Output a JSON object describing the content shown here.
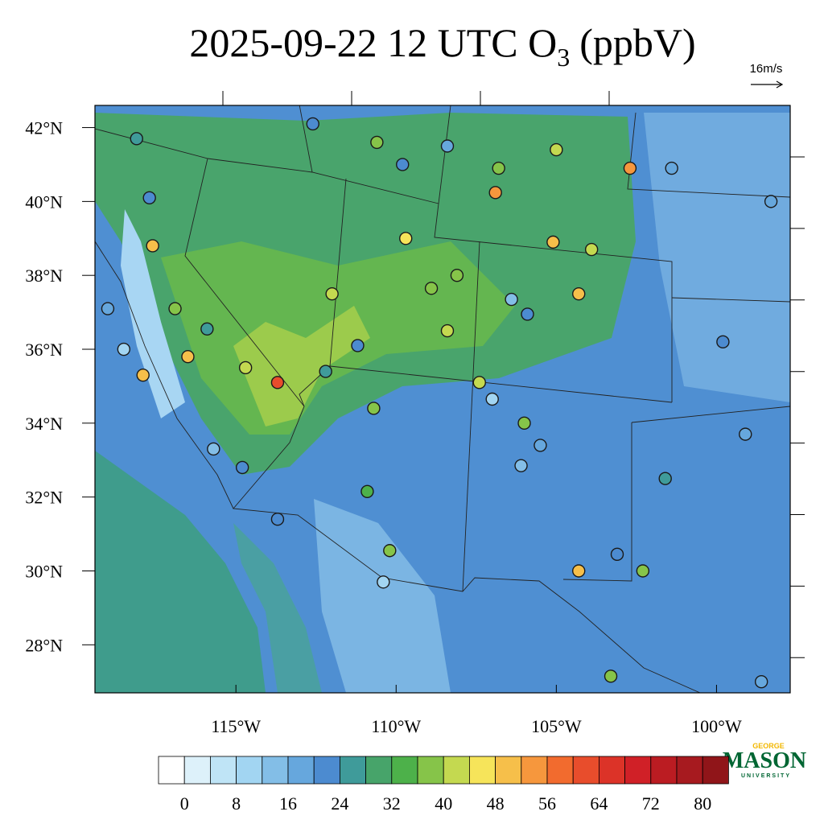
{
  "title": {
    "main": "2025-09-22 12 UTC O",
    "subscript": "3",
    "units": "(ppbV)"
  },
  "vector_reference": "16m/s",
  "map": {
    "xlim": [
      -119.4,
      -97.7
    ],
    "ylim": [
      26.7,
      42.6
    ],
    "xticks": [
      {
        "value": -115,
        "label": "115°W"
      },
      {
        "value": -110,
        "label": "110°W"
      },
      {
        "value": -105,
        "label": "105°W"
      },
      {
        "value": -100,
        "label": "100°W"
      }
    ],
    "yticks": [
      {
        "value": 28,
        "label": "28°N"
      },
      {
        "value": 30,
        "label": "30°N"
      },
      {
        "value": 32,
        "label": "32°N"
      },
      {
        "value": 34,
        "label": "34°N"
      },
      {
        "value": 36,
        "label": "36°N"
      },
      {
        "value": 38,
        "label": "38°N"
      },
      {
        "value": 40,
        "label": "40°N"
      },
      {
        "value": 42,
        "label": "42°N"
      }
    ],
    "stations": [
      {
        "lon": -113.7,
        "lat": 35.1,
        "value": 60
      },
      {
        "lon": -106.9,
        "lat": 40.24,
        "value": 54
      },
      {
        "lon": -102.7,
        "lat": 40.9,
        "value": 54
      },
      {
        "lon": -117.6,
        "lat": 38.8,
        "value": 48
      },
      {
        "lon": -117.9,
        "lat": 35.3,
        "value": 48
      },
      {
        "lon": -116.5,
        "lat": 35.8,
        "value": 48
      },
      {
        "lon": -105.1,
        "lat": 38.9,
        "value": 48
      },
      {
        "lon": -104.3,
        "lat": 37.5,
        "value": 48
      },
      {
        "lon": -104.3,
        "lat": 30.0,
        "value": 48
      },
      {
        "lon": -109.7,
        "lat": 39.0,
        "value": 44
      },
      {
        "lon": -105.0,
        "lat": 41.4,
        "value": 42
      },
      {
        "lon": -108.4,
        "lat": 36.5,
        "value": 42
      },
      {
        "lon": -103.9,
        "lat": 38.7,
        "value": 42
      },
      {
        "lon": -107.4,
        "lat": 35.1,
        "value": 42
      },
      {
        "lon": -110.6,
        "lat": 41.6,
        "value": 36
      },
      {
        "lon": -106.8,
        "lat": 40.9,
        "value": 36
      },
      {
        "lon": -108.1,
        "lat": 38.0,
        "value": 38
      },
      {
        "lon": -112.0,
        "lat": 37.5,
        "value": 40
      },
      {
        "lon": -114.7,
        "lat": 35.5,
        "value": 40
      },
      {
        "lon": -116.9,
        "lat": 37.1,
        "value": 38
      },
      {
        "lon": -108.9,
        "lat": 37.65,
        "value": 36
      },
      {
        "lon": -106.0,
        "lat": 34.0,
        "value": 36
      },
      {
        "lon": -102.3,
        "lat": 30.0,
        "value": 36
      },
      {
        "lon": -103.3,
        "lat": 27.15,
        "value": 38
      },
      {
        "lon": -110.7,
        "lat": 34.4,
        "value": 36
      },
      {
        "lon": -110.9,
        "lat": 32.15,
        "value": 34
      },
      {
        "lon": -110.2,
        "lat": 30.55,
        "value": 36
      },
      {
        "lon": -112.2,
        "lat": 35.4,
        "value": 24
      },
      {
        "lon": -111.2,
        "lat": 36.1,
        "value": 20
      },
      {
        "lon": -109.8,
        "lat": 41.0,
        "value": 22
      },
      {
        "lon": -112.6,
        "lat": 42.1,
        "value": 22
      },
      {
        "lon": -108.4,
        "lat": 41.5,
        "value": 16
      },
      {
        "lon": -101.4,
        "lat": 40.9,
        "value": 16
      },
      {
        "lon": -99.8,
        "lat": 36.2,
        "value": 22
      },
      {
        "lon": -99.1,
        "lat": 33.7,
        "value": 16
      },
      {
        "lon": -101.6,
        "lat": 32.5,
        "value": 24
      },
      {
        "lon": -103.1,
        "lat": 30.45,
        "value": 22
      },
      {
        "lon": -110.4,
        "lat": 29.7,
        "value": 8
      },
      {
        "lon": -106.1,
        "lat": 32.85,
        "value": 14
      },
      {
        "lon": -105.5,
        "lat": 33.4,
        "value": 18
      },
      {
        "lon": -118.5,
        "lat": 36.0,
        "value": 10
      },
      {
        "lon": -119.0,
        "lat": 37.1,
        "value": 16
      },
      {
        "lon": -118.1,
        "lat": 41.7,
        "value": 24
      },
      {
        "lon": -117.7,
        "lat": 40.1,
        "value": 22
      },
      {
        "lon": -115.9,
        "lat": 36.55,
        "value": 24
      },
      {
        "lon": -115.7,
        "lat": 33.3,
        "value": 14
      },
      {
        "lon": -114.8,
        "lat": 32.8,
        "value": 22
      },
      {
        "lon": -113.7,
        "lat": 31.4,
        "value": 20
      },
      {
        "lon": -98.3,
        "lat": 40.0,
        "value": 16
      },
      {
        "lon": -98.6,
        "lat": 27.0,
        "value": 16
      },
      {
        "lon": -106.4,
        "lat": 37.35,
        "value": 12
      },
      {
        "lon": -107.0,
        "lat": 34.65,
        "value": 10
      },
      {
        "lon": -105.9,
        "lat": 36.95,
        "value": 22
      }
    ]
  },
  "colorbar": {
    "levels": [
      0,
      4,
      8,
      12,
      16,
      20,
      24,
      28,
      32,
      36,
      40,
      44,
      48,
      52,
      56,
      60,
      64,
      68,
      72,
      76,
      80
    ],
    "labels": [
      0,
      8,
      16,
      24,
      32,
      40,
      48,
      56,
      64,
      72,
      80
    ],
    "colors": [
      "#ffffff",
      "#ddf1fa",
      "#bfe4f6",
      "#a2d5f2",
      "#83bee7",
      "#66a7dd",
      "#4c8bd0",
      "#3f9b9a",
      "#47a46a",
      "#4db14a",
      "#86c449",
      "#c4d950",
      "#f6e45a",
      "#f6bf4a",
      "#f6973d",
      "#f26b2e",
      "#e84d2c",
      "#dc3328",
      "#d02027",
      "#bb1c22",
      "#a71a1f",
      "#901519"
    ]
  },
  "logo": {
    "top": "GEORGE",
    "main": "MASON",
    "bottom": "UNIVERSITY"
  }
}
